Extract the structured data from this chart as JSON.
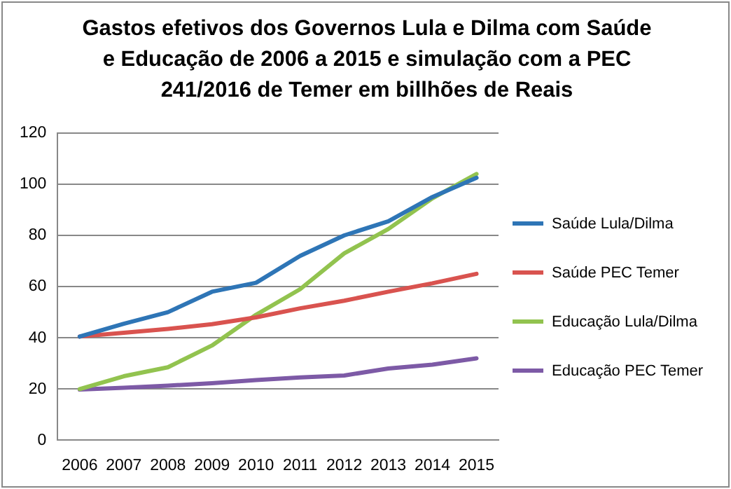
{
  "chart_data": {
    "type": "line",
    "title": "Gastos efetivos dos Governos Lula e Dilma com Saúde e Educação de 2006 a 2015 e simulação com a PEC 241/2016 de Temer em billhões de Reais",
    "categories": [
      "2006",
      "2007",
      "2008",
      "2009",
      "2010",
      "2011",
      "2012",
      "2013",
      "2014",
      "2015"
    ],
    "series": [
      {
        "name": "Saúde Lula/Dilma",
        "color": "#2e75b6",
        "values": [
          40.5,
          45.5,
          50,
          58,
          61.5,
          72,
          80,
          85.5,
          95,
          102.5
        ]
      },
      {
        "name": "Saúde PEC Temer",
        "color": "#d9534f",
        "values": [
          40.5,
          42,
          43.5,
          45.3,
          48,
          51.5,
          54.5,
          58,
          61.3,
          65
        ]
      },
      {
        "name": "Educação Lula/Dilma",
        "color": "#92c34f",
        "values": [
          20,
          25,
          28.5,
          37,
          49,
          59,
          73,
          82.5,
          94.5,
          104
        ]
      },
      {
        "name": "Educação PEC Temer",
        "color": "#7d5aa6",
        "values": [
          19.8,
          20.5,
          21.3,
          22.3,
          23.5,
          24.5,
          25.3,
          28,
          29.5,
          32
        ]
      }
    ],
    "ylim": [
      0,
      120
    ],
    "yticks": [
      0,
      20,
      40,
      60,
      80,
      100,
      120
    ],
    "grid": "y",
    "legend": "right",
    "marker": "none",
    "line_style": "solid"
  }
}
